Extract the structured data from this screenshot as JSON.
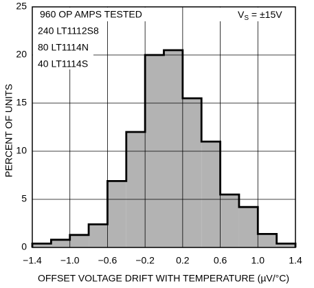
{
  "chart_data": {
    "type": "histogram",
    "bins": [
      -1.4,
      -1.2,
      -1.0,
      -0.8,
      -0.6,
      -0.4,
      -0.2,
      0,
      0.2,
      0.4,
      0.6,
      0.8,
      1.0,
      1.2,
      1.4
    ],
    "values": [
      0.4,
      0.8,
      1.3,
      2.4,
      6.9,
      12,
      20,
      20.5,
      15.5,
      11,
      5.5,
      4.2,
      1.4,
      0.4
    ],
    "color": "#b3b3b3",
    "xlim": [
      -1.4,
      1.4
    ],
    "xticks": [
      {
        "value": -1.4,
        "label": "−1.4"
      },
      {
        "value": -1.0,
        "label": "−1.0"
      },
      {
        "value": -0.6,
        "label": "−0.6"
      },
      {
        "value": -0.2,
        "label": "−0.2"
      },
      0.2,
      0.6,
      {
        "value": 1.0,
        "label": "1.0"
      },
      1.4
    ],
    "ylim": [
      0,
      25
    ],
    "yticks": [
      0,
      5,
      10,
      15,
      20,
      25
    ],
    "grid": true,
    "xlabel": "OFFSET VOLTAGE DRIFT WITH TEMPERATURE (µV/°C)",
    "ylabel": "PERCENT OF UNITS",
    "annotations": [
      "960 OP AMPS TESTED",
      "240 LT1112S8",
      "80 LT1114N",
      "40 LT1114S"
    ],
    "supply_label": {
      "main": "V",
      "sub": "S",
      "rest": " = ±15V"
    }
  }
}
